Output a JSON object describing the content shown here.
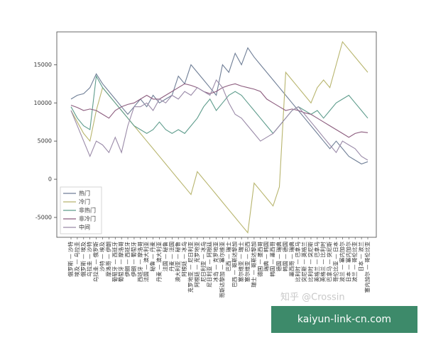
{
  "chart_data": {
    "type": "line",
    "categories": [
      "俄罗斯 — 沙特",
      "埃及 — 乌拉圭",
      "俄罗斯 — 埃及",
      "乌拉圭 — 沙特",
      "乌拉圭 — 俄罗斯",
      "沙特 — 埃及",
      "摩洛哥 — 伊朗",
      "葡萄牙 — 西班牙",
      "葡萄牙 — 摩洛哥",
      "伊朗 — 西班牙",
      "伊朗 — 葡萄牙",
      "西班牙 — 摩洛哥",
      "法国 — 澳大利亚",
      "秘鲁 — 丹麦",
      "丹麦 — 澳大利亚",
      "法国 — 秘鲁",
      "丹麦 — 法国",
      "澳大利亚 — 秘鲁",
      "阿根廷 — 冰岛",
      "克罗地亚 — 尼日利亚",
      "阿根廷 — 克罗地亚",
      "尼日利亚 — 冰岛",
      "尼日利亚 — 阿根廷",
      "冰岛 — 克罗地亚",
      "哥斯达黎加 — 塞尔维亚",
      "巴西 — 瑞士",
      "巴西 — 哥斯达黎加",
      "塞尔维亚 — 瑞士",
      "塞尔维亚 — 巴西",
      "瑞士 — 哥斯达黎加",
      "德国 — 墨西哥",
      "瑞典 — 韩国",
      "韩国 — 墨西哥",
      "德国 — 瑞典",
      "韩国 — 德国",
      "墨西哥 — 瑞典",
      "比利时 — 巴拿马",
      "突尼斯 — 英格兰",
      "比利时 — 突尼斯",
      "英格兰 — 巴拿马",
      "英格兰 — 比利时",
      "巴拿马 — 突尼斯",
      "哥伦比亚 — 日本",
      "波兰 — 塞内加尔",
      "日本 — 塞内加尔",
      "波兰 — 哥伦比亚",
      "日本 — 波兰",
      "塞内加尔 — 哥伦比亚"
    ],
    "series": [
      {
        "name": "热门",
        "color": "#6f7e96",
        "values": [
          10500,
          11000,
          11200,
          12000,
          13800,
          12500,
          11500,
          10500,
          9500,
          8500,
          9500,
          10500,
          9500,
          11000,
          10000,
          10500,
          11000,
          13500,
          12500,
          15000,
          14000,
          13000,
          12000,
          11000,
          15000,
          14000,
          16500,
          15000,
          17200,
          16000,
          15000,
          14000,
          13000,
          12000,
          11000,
          10000,
          9000,
          8000,
          7000,
          6000,
          5000,
          4000,
          5000,
          4000,
          3000,
          2500,
          2000,
          2300
        ]
      },
      {
        "name": "冷门",
        "color": "#b8b56e",
        "values": [
          9000,
          7500,
          6000,
          5000,
          9000,
          12000,
          11000,
          10000,
          9000,
          8000,
          7000,
          6000,
          5000,
          4000,
          3000,
          2000,
          1000,
          0,
          -1000,
          -2000,
          1000,
          0,
          -1000,
          -2000,
          -3000,
          -4000,
          -5000,
          -6000,
          -7000,
          -500,
          -1500,
          -2500,
          -3500,
          -1000,
          14000,
          13000,
          12000,
          11000,
          10000,
          12000,
          13000,
          12000,
          15000,
          18000,
          17000,
          16000,
          15000,
          14000
        ]
      },
      {
        "name": "非热门",
        "color": "#5e9c8c",
        "values": [
          9500,
          8000,
          7000,
          6500,
          13500,
          12000,
          11000,
          10000,
          9000,
          8000,
          7000,
          6500,
          6000,
          6500,
          7500,
          6500,
          6000,
          6500,
          6000,
          7000,
          8000,
          9500,
          10500,
          9000,
          10000,
          11000,
          11500,
          11000,
          10000,
          9000,
          8000,
          7000,
          6000,
          7000,
          8000,
          9000,
          9500,
          9000,
          8500,
          9000,
          8000,
          9000,
          10000,
          10500,
          11000,
          10000,
          9000,
          8000
        ]
      },
      {
        "name": "非冷门",
        "color": "#8b5b7d",
        "values": [
          9700,
          9400,
          9000,
          9200,
          9000,
          8500,
          8000,
          9000,
          9500,
          9800,
          10000,
          10500,
          11000,
          10500,
          10500,
          11000,
          11500,
          12000,
          12500,
          12300,
          12000,
          11500,
          11200,
          11500,
          12000,
          12300,
          12500,
          12200,
          12000,
          11800,
          11500,
          10500,
          10000,
          9500,
          9000,
          9200,
          9000,
          8700,
          8500,
          8000,
          7500,
          7000,
          6500,
          6000,
          5500,
          6000,
          6200,
          6100
        ]
      },
      {
        "name": "中间",
        "color": "#9a8aa8",
        "values": [
          9000,
          7000,
          5000,
          3000,
          5000,
          4500,
          3500,
          5500,
          3500,
          7000,
          9500,
          9500,
          10000,
          9000,
          10500,
          10000,
          11000,
          10500,
          11500,
          11000,
          12000,
          11500,
          11000,
          13000,
          12000,
          10000,
          8500,
          8000,
          7000,
          6000,
          5000,
          5500,
          6000,
          7000,
          8000,
          9000,
          9500,
          8500,
          7500,
          6500,
          5500,
          4500,
          3500,
          5000,
          4500,
          4000,
          3000,
          2500
        ]
      }
    ],
    "ylim": [
      -7600,
      19300
    ],
    "yticks": [
      -5000,
      0,
      5000,
      10000,
      15000
    ],
    "legend": "lower left"
  },
  "overlay": {
    "watermark": "知乎 @Crossin",
    "banner": "kaiyun-link-cn.com"
  }
}
